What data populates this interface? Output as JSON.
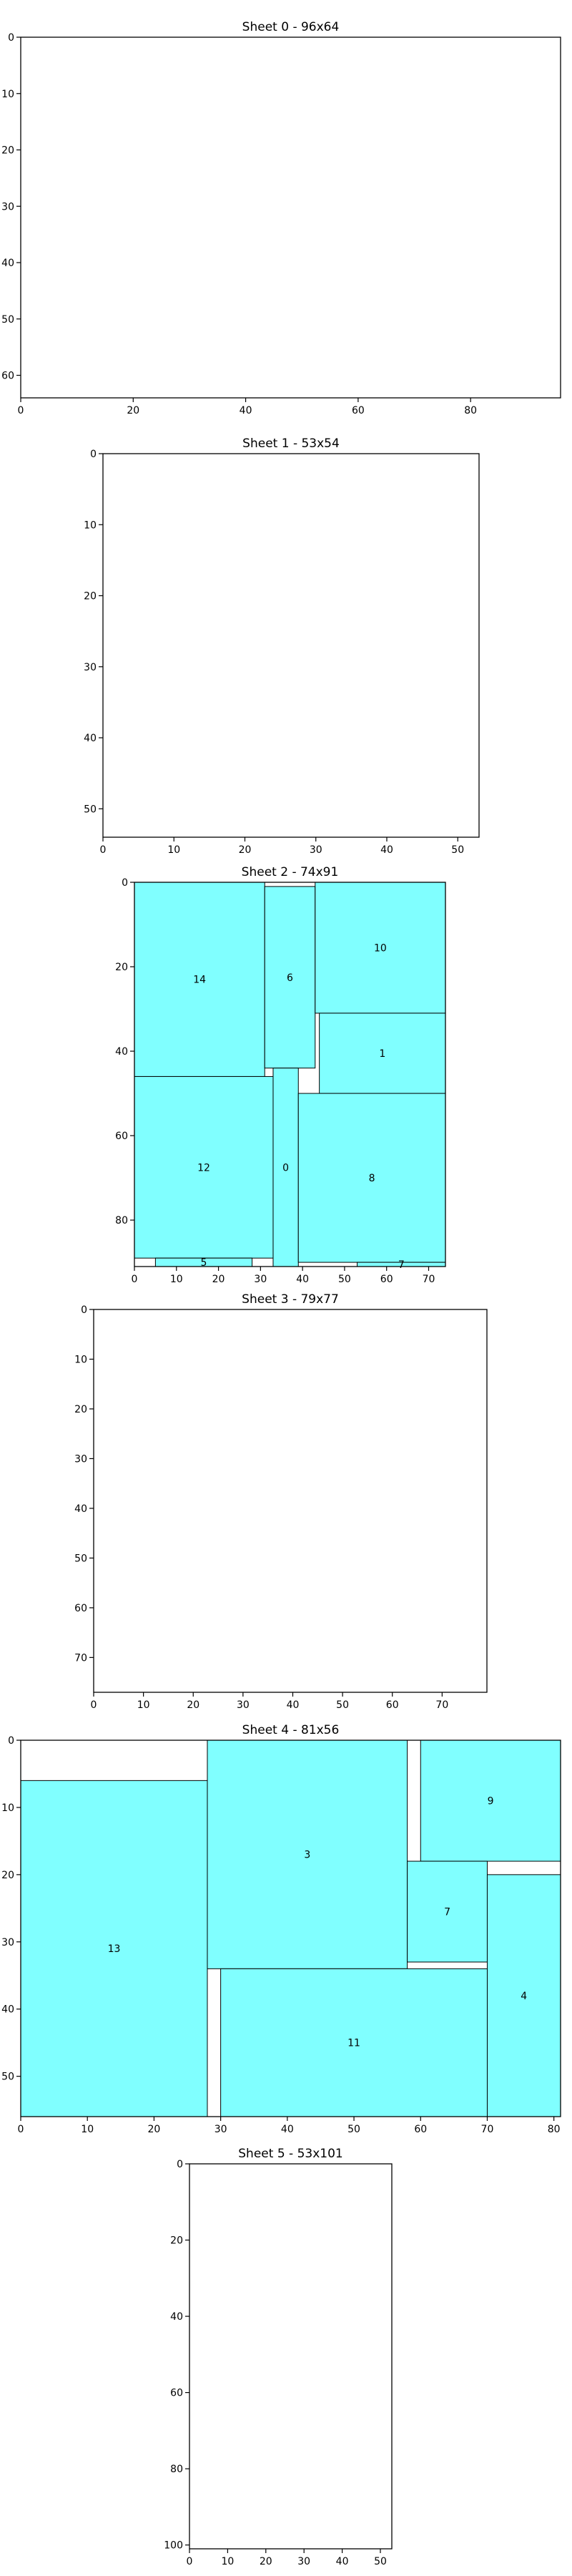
{
  "colors": {
    "piece_fill": "#80ffff",
    "piece_edge": "#000000",
    "axes": "#000000"
  },
  "chart_data": [
    {
      "type": "rect-packing",
      "title": "Sheet 0 - 96x64",
      "width": 96,
      "height": 64,
      "xticks": [
        0,
        20,
        40,
        60,
        80
      ],
      "yticks": [
        0,
        10,
        20,
        30,
        40,
        50,
        60
      ],
      "xlim": [
        0,
        96
      ],
      "ylim": [
        64,
        0
      ],
      "pieces": []
    },
    {
      "type": "rect-packing",
      "title": "Sheet 1 - 53x54",
      "width": 53,
      "height": 54,
      "xticks": [
        0,
        10,
        20,
        30,
        40,
        50
      ],
      "yticks": [
        0,
        10,
        20,
        30,
        40,
        50
      ],
      "xlim": [
        0,
        53
      ],
      "ylim": [
        54,
        0
      ],
      "pieces": []
    },
    {
      "type": "rect-packing",
      "title": "Sheet 2 - 74x91",
      "width": 74,
      "height": 91,
      "xticks": [
        0,
        10,
        20,
        30,
        40,
        50,
        60,
        70
      ],
      "yticks": [
        0,
        20,
        40,
        60,
        80
      ],
      "xlim": [
        0,
        74
      ],
      "ylim": [
        91,
        0
      ],
      "pieces": [
        {
          "id": "14",
          "x": 0,
          "y": 0,
          "w": 31,
          "h": 46
        },
        {
          "id": "6",
          "x": 31,
          "y": 1,
          "w": 12,
          "h": 43
        },
        {
          "id": "10",
          "x": 43,
          "y": 0,
          "w": 31,
          "h": 31
        },
        {
          "id": "1",
          "x": 44,
          "y": 31,
          "w": 30,
          "h": 19
        },
        {
          "id": "12",
          "x": 0,
          "y": 46,
          "w": 33,
          "h": 43
        },
        {
          "id": "0",
          "x": 33,
          "y": 44,
          "w": 6,
          "h": 47
        },
        {
          "id": "8",
          "x": 39,
          "y": 50,
          "w": 35,
          "h": 40
        },
        {
          "id": "5",
          "x": 5,
          "y": 89,
          "w": 23,
          "h": 2
        },
        {
          "id": "7",
          "x": 53,
          "y": 90,
          "w": 21,
          "h": 1
        }
      ]
    },
    {
      "type": "rect-packing",
      "title": "Sheet 3 - 79x77",
      "width": 79,
      "height": 77,
      "xticks": [
        0,
        10,
        20,
        30,
        40,
        50,
        60,
        70
      ],
      "yticks": [
        0,
        10,
        20,
        30,
        40,
        50,
        60,
        70
      ],
      "xlim": [
        0,
        79
      ],
      "ylim": [
        77,
        0
      ],
      "pieces": []
    },
    {
      "type": "rect-packing",
      "title": "Sheet 4 - 81x56",
      "width": 81,
      "height": 56,
      "xticks": [
        0,
        10,
        20,
        30,
        40,
        50,
        60,
        70,
        80
      ],
      "yticks": [
        0,
        10,
        20,
        30,
        40,
        50
      ],
      "xlim": [
        0,
        81
      ],
      "ylim": [
        56,
        0
      ],
      "pieces": [
        {
          "id": "13",
          "x": 0,
          "y": 6,
          "w": 28,
          "h": 50
        },
        {
          "id": "3",
          "x": 28,
          "y": 0,
          "w": 30,
          "h": 34
        },
        {
          "id": "9",
          "x": 60,
          "y": 0,
          "w": 21,
          "h": 18
        },
        {
          "id": "7",
          "x": 58,
          "y": 18,
          "w": 12,
          "h": 15
        },
        {
          "id": "4",
          "x": 70,
          "y": 20,
          "w": 11,
          "h": 36
        },
        {
          "id": "11",
          "x": 30,
          "y": 34,
          "w": 40,
          "h": 22
        }
      ]
    },
    {
      "type": "rect-packing",
      "title": "Sheet 5 - 53x101",
      "width": 53,
      "height": 101,
      "xticks": [
        0,
        10,
        20,
        30,
        40,
        50
      ],
      "yticks": [
        0,
        20,
        40,
        60,
        80,
        100
      ],
      "xlim": [
        0,
        53
      ],
      "ylim": [
        101,
        0
      ],
      "pieces": []
    }
  ]
}
